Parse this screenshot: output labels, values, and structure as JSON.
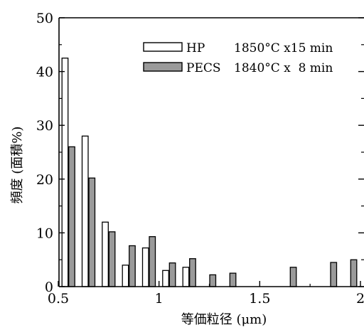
{
  "chart_data": {
    "type": "bar",
    "xlabel": "等価粒径 (μm)",
    "ylabel": "頻度 (面積%)",
    "xlim": [
      0.5,
      2.0
    ],
    "ylim": [
      0,
      50
    ],
    "xticks": [
      0.5,
      1.0,
      1.5,
      2.0
    ],
    "xtick_labels": [
      "0.5",
      "1",
      "1.5",
      "2"
    ],
    "yticks": [
      0,
      10,
      20,
      30,
      40,
      50
    ],
    "ytick_labels": [
      "0",
      "10",
      "20",
      "30",
      "40",
      "50"
    ],
    "grid": false,
    "legend_position": "top-right",
    "series": [
      {
        "name": "HP",
        "condition": "1850°C x15 min",
        "color": "#ffffff",
        "x": [
          0.55,
          0.65,
          0.75,
          0.85,
          0.95,
          1.05,
          1.15
        ],
        "values": [
          42.5,
          28.0,
          12.0,
          4.0,
          7.2,
          3.0,
          3.6
        ]
      },
      {
        "name": "PECS",
        "condition": "1840°C x  8 min",
        "color": "#9a9a9a",
        "x": [
          0.55,
          0.65,
          0.75,
          0.85,
          0.95,
          1.05,
          1.15,
          1.25,
          1.35,
          1.65,
          1.85,
          1.95
        ],
        "values": [
          26.0,
          20.2,
          10.2,
          7.6,
          9.3,
          4.4,
          5.2,
          2.2,
          2.5,
          3.6,
          4.5,
          5.0
        ]
      }
    ]
  }
}
